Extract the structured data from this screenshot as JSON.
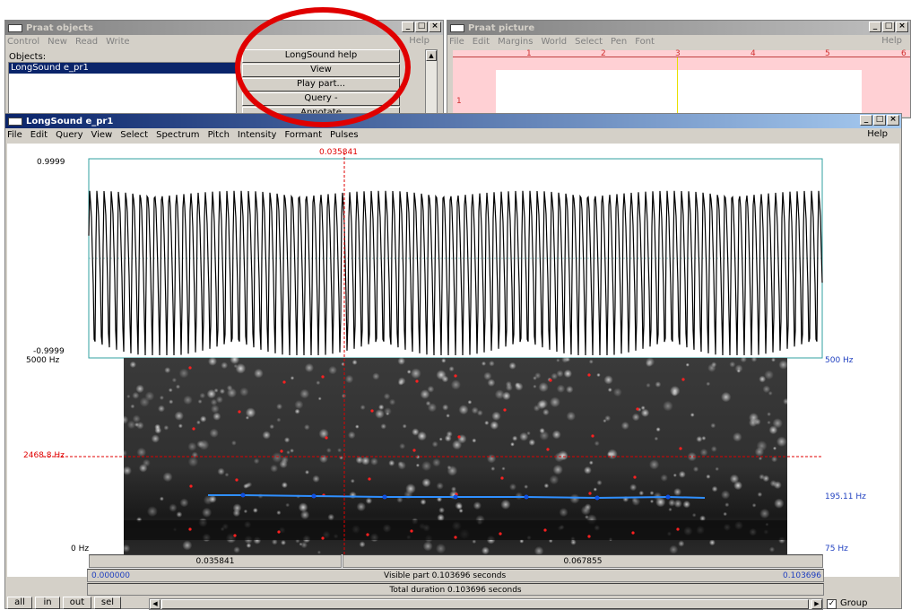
{
  "objects_window": {
    "title": "Praat objects",
    "menu": [
      "Control",
      "New",
      "Read",
      "Write"
    ],
    "help": "Help",
    "objects_label": "Objects:",
    "selected_object": "LongSound e_pr1",
    "buttons": [
      "LongSound help",
      "View",
      "Play part...",
      "Query -",
      "Annotate"
    ]
  },
  "picture_window": {
    "title": "Praat picture",
    "menu": [
      "File",
      "Edit",
      "Margins",
      "World",
      "Select",
      "Pen",
      "Font"
    ],
    "help": "Help",
    "ruler_ticks": [
      "1",
      "2",
      "3",
      "4",
      "5",
      "6"
    ],
    "side_tick": "1"
  },
  "editor": {
    "title": "LongSound e_pr1",
    "menu": [
      "File",
      "Edit",
      "Query",
      "View",
      "Select",
      "Spectrum",
      "Pitch",
      "Intensity",
      "Formant",
      "Pulses"
    ],
    "help": "Help",
    "cursor_time": "0.035841",
    "wave_max": "0.9999",
    "wave_min": "-0.9999",
    "spec_top": "5000 Hz",
    "spec_cursor_freq": "2468.8 Hz",
    "spec_bottom": "0 Hz",
    "pitch_top": "500 Hz",
    "pitch_value": "195.11 Hz",
    "pitch_bottom": "75 Hz",
    "bar_left_time": "0.035841",
    "bar_right_time": "0.067855",
    "visible_start": "0.000000",
    "visible_label": "Visible part 0.103696 seconds",
    "visible_end": "0.103696",
    "total_label": "Total duration 0.103696 seconds",
    "bottom_buttons": [
      "all",
      "in",
      "out",
      "sel"
    ],
    "group_label": "Group",
    "group_checked": true
  },
  "colors": {
    "annotation_circle": "#e00000",
    "cursor": "#e00000",
    "pitch_line": "#2f8fff",
    "wave_frame": "#30a0a0"
  }
}
